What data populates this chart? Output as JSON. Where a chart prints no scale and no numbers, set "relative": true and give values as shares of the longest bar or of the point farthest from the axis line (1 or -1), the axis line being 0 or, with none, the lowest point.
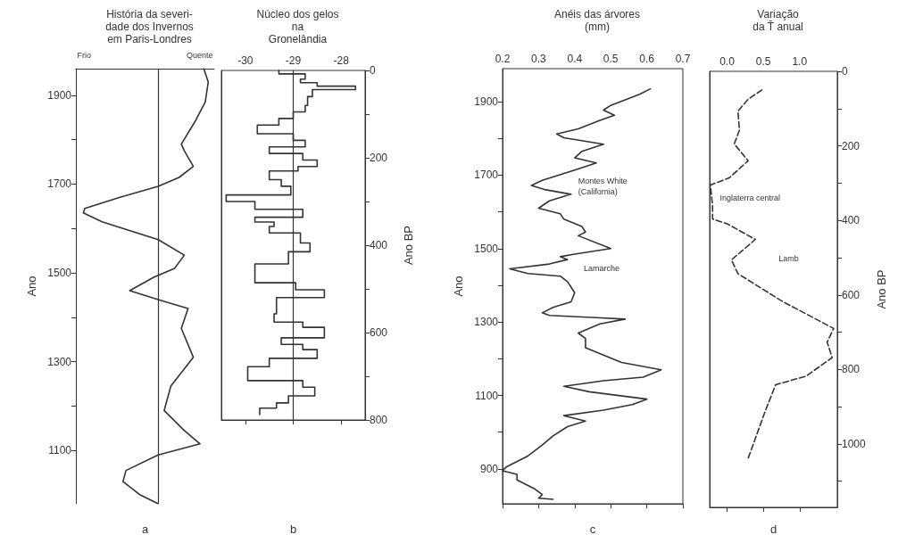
{
  "chart_data": [
    {
      "type": "line",
      "title": "História da severi-\ndade dos Invernos\nem Paris-Londres",
      "ylabel": "Ano",
      "xlabel": "a",
      "relative": true,
      "orientation": "horizontal",
      "annotations": [
        "Frio",
        "Quente"
      ],
      "ylim": [
        980,
        1960
      ],
      "yticks": [
        1100,
        {
          "value": 1200,
          "label": null
        },
        1300,
        {
          "value": 1400,
          "label": null
        },
        1500,
        {
          "value": 1600,
          "label": null
        },
        1700,
        {
          "value": 1800,
          "label": null
        },
        1900
      ],
      "grid": false,
      "series": [
        {
          "color": "#333333",
          "values": [
            0.61,
            0.67,
            0.63,
            0.49,
            0.31,
            0.35,
            0.47,
            0.28,
            0,
            -0.52,
            -0.98,
            -1,
            -0.75,
            0,
            0.35,
            0.22,
            -0.06,
            -0.38,
            0,
            0.4,
            0.31,
            0.47,
            0.17,
            0.08,
            0.35,
            0.56,
            0,
            -0.43,
            -0.47,
            -0.24,
            0
          ],
          "x": [
            1960,
            1930,
            1885,
            1840,
            1790,
            1775,
            1740,
            1715,
            1695,
            1670,
            1645,
            1635,
            1615,
            1575,
            1540,
            1510,
            1490,
            1460,
            1440,
            1420,
            1375,
            1310,
            1245,
            1190,
            1145,
            1115,
            1090,
            1055,
            1030,
            1000,
            980
          ]
        }
      ]
    },
    {
      "type": "step",
      "title": "Núcleo dos gelos\nna\nGronelândia",
      "y2label": "Ano BP",
      "xlabel": "b",
      "xlim": [
        -30.5,
        -27.5
      ],
      "xticks": [
        -30,
        -29,
        -28
      ],
      "y2lim": [
        800,
        0
      ],
      "y2ticks": [
        0,
        {
          "value": 100,
          "label": null
        },
        200,
        {
          "value": 300,
          "label": null
        },
        400,
        {
          "value": 500,
          "label": null
        },
        600,
        {
          "value": 700,
          "label": null
        },
        800
      ],
      "grid": false,
      "ref_lines": [
        {
          "axis": "x",
          "value": -29
        }
      ],
      "series": [
        {
          "color": "#333333",
          "axis": "y2",
          "x": [
            -29.3,
            -28.75,
            -28.85,
            -28.5,
            -27.7,
            -28.6,
            -28.7,
            -28.75,
            -29.0,
            -29.3,
            -29.75,
            -29.0,
            -28.75,
            -29.5,
            -28.8,
            -28.5,
            -28.9,
            -29.5,
            -29.25,
            -29.05,
            -30.4,
            -29.8,
            -28.8,
            -29.8,
            -29.4,
            -29.5,
            -28.85,
            -28.65,
            -29.1,
            -29.8,
            -28.95,
            -28.35,
            -29.35,
            -29.4,
            -28.8,
            -28.35,
            -29.25,
            -28.8,
            -28.5,
            -29.5,
            -29.95,
            -28.8,
            -28.55,
            -29.1,
            -29.35,
            -29.7,
            -29.7
          ],
          "values": [
            0,
            8,
            20,
            28,
            36,
            44,
            60,
            80,
            95,
            110,
            125,
            145,
            160,
            175,
            190,
            205,
            220,
            230,
            250,
            265,
            285,
            300,
            318,
            336,
            347,
            357,
            372,
            395,
            415,
            443,
            486,
            502,
            520,
            557,
            576,
            588,
            612,
            627,
            639,
            659,
            678,
            710,
            725,
            745,
            761,
            773,
            788
          ]
        }
      ]
    },
    {
      "type": "line",
      "title": "Anéis das árvores\n(mm)",
      "ylabel": "Ano",
      "xlabel": "c",
      "xlim": [
        0.2,
        0.7
      ],
      "xticks": [
        0.2,
        0.3,
        0.4,
        0.5,
        0.6,
        0.7
      ],
      "ylim": [
        805,
        1990
      ],
      "yticks": [
        900,
        {
          "value": 1000,
          "label": null
        },
        1100,
        {
          "value": 1200,
          "label": null
        },
        1300,
        {
          "value": 1400,
          "label": null
        },
        1500,
        {
          "value": 1600,
          "label": null
        },
        1700,
        {
          "value": 1800,
          "label": null
        },
        1900
      ],
      "grid": false,
      "annotations": [
        "Montes White\n(California)",
        "Lamarche"
      ],
      "series": [
        {
          "color": "#333333",
          "x": [
            0.61,
            0.58,
            0.5,
            0.48,
            0.51,
            0.47,
            0.41,
            0.35,
            0.37,
            0.48,
            0.42,
            0.4,
            0.46,
            0.4,
            0.31,
            0.28,
            0.32,
            0.39,
            0.33,
            0.3,
            0.36,
            0.37,
            0.42,
            0.43,
            0.41,
            0.5,
            0.4,
            0.36,
            0.38,
            0.33,
            0.22,
            0.27,
            0.36,
            0.38,
            0.4,
            0.39,
            0.34,
            0.31,
            0.33,
            0.46,
            0.54,
            0.47,
            0.41,
            0.43,
            0.43,
            0.53,
            0.64,
            0.59,
            0.48,
            0.37,
            0.44,
            0.6,
            0.56,
            0.48,
            0.37,
            0.43,
            0.38,
            0.34,
            0.31,
            0.27,
            0.21,
            0.2,
            0.24,
            0.24,
            0.29,
            0.31,
            0.3,
            0.34
          ],
          "values": [
            1935,
            1920,
            1890,
            1877,
            1863,
            1849,
            1826,
            1812,
            1802,
            1784,
            1765,
            1747,
            1733,
            1714,
            1686,
            1672,
            1660,
            1648,
            1630,
            1610,
            1595,
            1580,
            1560,
            1545,
            1535,
            1500,
            1485,
            1478,
            1470,
            1458,
            1445,
            1432,
            1425,
            1410,
            1380,
            1355,
            1340,
            1325,
            1318,
            1312,
            1308,
            1295,
            1270,
            1255,
            1230,
            1190,
            1170,
            1150,
            1140,
            1125,
            1110,
            1090,
            1075,
            1060,
            1045,
            1030,
            1015,
            990,
            965,
            935,
            905,
            895,
            885,
            870,
            845,
            830,
            820,
            817
          ]
        }
      ]
    },
    {
      "type": "line",
      "title": "Variação\nda T̄ anual",
      "y2label": "Ano BP",
      "xlabel": "d",
      "xlim": [
        -0.24,
        1.52
      ],
      "xticks": [
        {
          "value": 0,
          "label": "0.0"
        },
        0.5,
        {
          "value": 1,
          "label": "1.0"
        }
      ],
      "y2lim": [
        1170,
        0
      ],
      "y2ticks": [
        0,
        {
          "value": 100,
          "label": null
        },
        200,
        {
          "value": 300,
          "label": null
        },
        400,
        {
          "value": 500,
          "label": null
        },
        600,
        {
          "value": 700,
          "label": null
        },
        800,
        {
          "value": 900,
          "label": null
        },
        1000,
        {
          "value": 1100,
          "label": null
        }
      ],
      "grid": false,
      "line_style": "dashed",
      "annotations": [
        "Inglaterra central",
        "Lamb"
      ],
      "series": [
        {
          "color": "#333333",
          "axis": "y2",
          "x": [
            0.48,
            0.29,
            0.15,
            0.17,
            0.1,
            0.29,
            0.03,
            -0.23,
            -0.2,
            -0.2,
            0.01,
            0.39,
            0.06,
            0.15,
            0.76,
            1.47,
            1.38,
            1.45,
            1.09,
            0.67,
            0.53,
            0.29
          ],
          "values": [
            50,
            75,
            107,
            158,
            195,
            240,
            286,
            305,
            360,
            396,
            410,
            451,
            506,
            543,
            617,
            690,
            727,
            768,
            818,
            841,
            910,
            1039
          ]
        }
      ]
    }
  ]
}
